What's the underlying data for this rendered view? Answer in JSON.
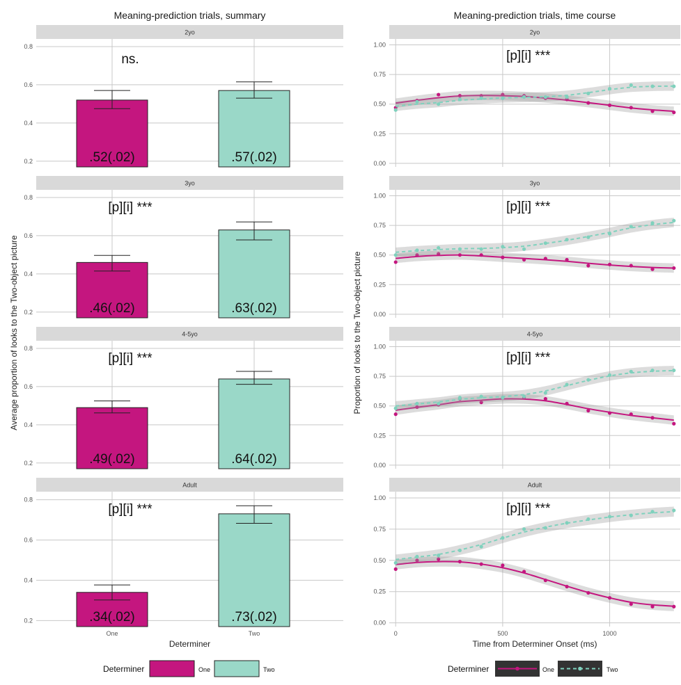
{
  "legend_left": {
    "title": "Determiner",
    "items": [
      "One",
      "Two"
    ]
  },
  "legend_right": {
    "title": "Determiner",
    "items": [
      "One",
      "Two"
    ]
  },
  "colors": {
    "one": "#c4167f",
    "two": "#9ad8c8",
    "two_line": "#7fd1bd",
    "strip": "#d9d9d9",
    "grid": "#c8c8c8"
  },
  "chart_data": [
    {
      "type": "bar",
      "title": "Meaning-prediction trials, summary",
      "xlabel": "Determiner",
      "ylabel": "Average proportion of looks to the Two-object picture",
      "categories": [
        "One",
        "Two"
      ],
      "yticks": [
        "0.2",
        "0.4",
        "0.6",
        "0.8"
      ],
      "ylim": [
        0.17,
        0.84
      ],
      "panels": [
        {
          "strip": "2yo",
          "annotation": "ns.",
          "values": [
            0.52,
            0.57
          ],
          "err_low": [
            0.475,
            0.53
          ],
          "err_high": [
            0.57,
            0.615
          ],
          "labels": [
            ".52(.02)",
            ".57(.02)"
          ]
        },
        {
          "strip": "3yo",
          "annotation": "[p][i] ***",
          "values": [
            0.46,
            0.63
          ],
          "err_low": [
            0.415,
            0.578
          ],
          "err_high": [
            0.497,
            0.672
          ],
          "labels": [
            ".46(.02)",
            ".63(.02)"
          ]
        },
        {
          "strip": "4-5yo",
          "annotation": "[p][i] ***",
          "values": [
            0.49,
            0.64
          ],
          "err_low": [
            0.462,
            0.612
          ],
          "err_high": [
            0.525,
            0.68
          ],
          "labels": [
            ".49(.02)",
            ".64(.02)"
          ]
        },
        {
          "strip": "Adult",
          "annotation": "[p][i] ***",
          "values": [
            0.34,
            0.73
          ],
          "err_low": [
            0.302,
            0.683
          ],
          "err_high": [
            0.377,
            0.77
          ],
          "labels": [
            ".34(.02)",
            ".73(.02)"
          ]
        }
      ]
    },
    {
      "type": "line",
      "title": "Meaning-prediction trials, time course",
      "xlabel": "Time from Determiner Onset (ms)",
      "ylabel": "Proportion of looks to the Two-object picture",
      "xticks": [
        "0",
        "500",
        "1000"
      ],
      "yticks": [
        "0.00",
        "0.25",
        "0.50",
        "0.75",
        "1.00"
      ],
      "xlim": [
        -30,
        1330
      ],
      "ylim": [
        -0.03,
        1.05
      ],
      "x": [
        0,
        100,
        200,
        300,
        400,
        500,
        600,
        700,
        800,
        900,
        1000,
        1100,
        1200,
        1300
      ],
      "panels": [
        {
          "strip": "2yo",
          "annotation": "[p][i] ***",
          "series": [
            {
              "name": "One",
              "values": [
                0.47,
                0.53,
                0.58,
                0.57,
                0.57,
                0.58,
                0.57,
                0.55,
                0.54,
                0.51,
                0.49,
                0.47,
                0.44,
                0.43
              ]
            },
            {
              "name": "Two",
              "values": [
                0.45,
                0.52,
                0.5,
                0.54,
                0.55,
                0.55,
                0.56,
                0.56,
                0.56,
                0.59,
                0.63,
                0.66,
                0.65,
                0.65
              ]
            }
          ]
        },
        {
          "strip": "3yo",
          "annotation": "[p][i] ***",
          "series": [
            {
              "name": "One",
              "values": [
                0.44,
                0.5,
                0.51,
                0.5,
                0.5,
                0.48,
                0.46,
                0.47,
                0.46,
                0.41,
                0.42,
                0.41,
                0.38,
                0.39
              ]
            },
            {
              "name": "Two",
              "values": [
                0.5,
                0.54,
                0.56,
                0.55,
                0.55,
                0.57,
                0.55,
                0.6,
                0.63,
                0.65,
                0.68,
                0.74,
                0.77,
                0.79
              ]
            }
          ]
        },
        {
          "strip": "4-5yo",
          "annotation": "[p][i] ***",
          "series": [
            {
              "name": "One",
              "values": [
                0.43,
                0.49,
                0.51,
                0.56,
                0.53,
                0.57,
                0.57,
                0.56,
                0.52,
                0.46,
                0.44,
                0.43,
                0.4,
                0.35
              ]
            },
            {
              "name": "Two",
              "values": [
                0.48,
                0.52,
                0.52,
                0.57,
                0.58,
                0.57,
                0.58,
                0.61,
                0.68,
                0.72,
                0.76,
                0.79,
                0.8,
                0.8
              ]
            }
          ]
        },
        {
          "strip": "Adult",
          "annotation": "[p][i] ***",
          "series": [
            {
              "name": "One",
              "values": [
                0.43,
                0.5,
                0.51,
                0.49,
                0.47,
                0.46,
                0.41,
                0.34,
                0.29,
                0.24,
                0.2,
                0.15,
                0.13,
                0.13
              ]
            },
            {
              "name": "Two",
              "values": [
                0.48,
                0.53,
                0.54,
                0.58,
                0.61,
                0.68,
                0.75,
                0.76,
                0.8,
                0.83,
                0.85,
                0.86,
                0.89,
                0.9
              ]
            }
          ]
        }
      ]
    }
  ]
}
